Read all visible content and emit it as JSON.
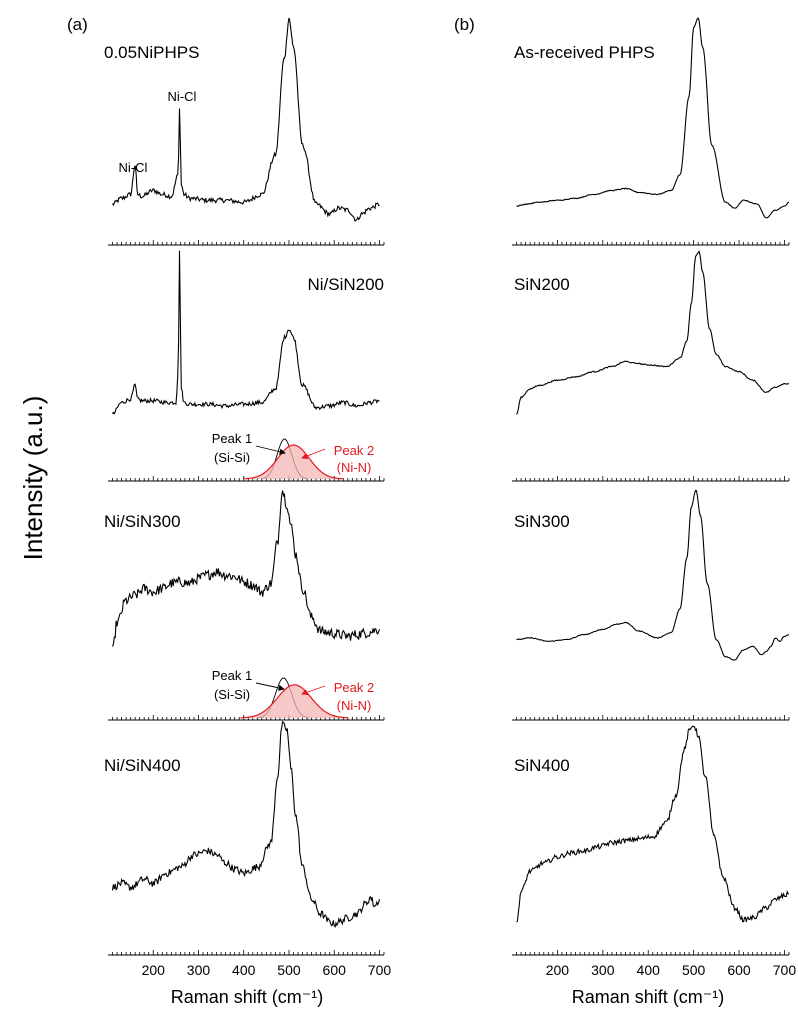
{
  "figure": {
    "y_axis_label": "Intensity (a.u.)",
    "panels": [
      {
        "letter": "(a)",
        "x_axis_label": "Raman shift (cm⁻¹)"
      },
      {
        "letter": "(b)",
        "x_axis_label": "Raman shift (cm⁻¹)"
      }
    ]
  },
  "chart_data": [
    {
      "type": "line",
      "panel": "(a)",
      "xlabel": "Raman shift (cm⁻¹)",
      "ylabel": "Intensity (a.u.)",
      "xlim": [
        100,
        710
      ],
      "xticks": [
        200,
        300,
        400,
        500,
        600,
        700
      ],
      "line_color": "#000000",
      "fit_color": "#e5191e",
      "fit_fill": "#f4b6b6",
      "series": [
        {
          "name": "0.05NiPHPS",
          "x": [
            110,
            130,
            150,
            160,
            165,
            175,
            200,
            220,
            240,
            255,
            258,
            262,
            268,
            280,
            320,
            360,
            400,
            440,
            470,
            490,
            500,
            510,
            530,
            560,
            590,
            610,
            630,
            650,
            660,
            680,
            700
          ],
          "values": [
            0.05,
            0.08,
            0.1,
            0.25,
            0.1,
            0.09,
            0.12,
            0.1,
            0.09,
            0.2,
            0.55,
            0.15,
            0.1,
            0.08,
            0.07,
            0.07,
            0.06,
            0.1,
            0.3,
            0.8,
            1.0,
            0.85,
            0.35,
            0.05,
            0.0,
            0.03,
            0.02,
            -0.03,
            0.0,
            0.03,
            0.05
          ],
          "annotations": [
            {
              "text": "Ni-Cl",
              "x": 160
            },
            {
              "text": "Ni-Cl",
              "x": 258
            }
          ]
        },
        {
          "name": "Ni/SiN200",
          "x": [
            110,
            130,
            150,
            160,
            165,
            175,
            200,
            230,
            250,
            255,
            258,
            262,
            268,
            280,
            320,
            360,
            400,
            440,
            470,
            490,
            500,
            510,
            530,
            560,
            590,
            620,
            650,
            680,
            700
          ],
          "values": [
            0.05,
            0.12,
            0.14,
            0.22,
            0.14,
            0.13,
            0.13,
            0.12,
            0.12,
            0.3,
            1.0,
            0.2,
            0.12,
            0.11,
            0.11,
            0.1,
            0.11,
            0.12,
            0.2,
            0.5,
            0.55,
            0.5,
            0.22,
            0.09,
            0.1,
            0.12,
            0.1,
            0.12,
            0.13
          ]
        },
        {
          "name": "Ni/SiN300",
          "x": [
            110,
            120,
            140,
            160,
            180,
            200,
            220,
            240,
            260,
            280,
            300,
            320,
            340,
            360,
            380,
            400,
            420,
            440,
            460,
            475,
            485,
            495,
            505,
            515,
            530,
            550,
            570,
            590,
            610,
            630,
            650,
            670,
            700
          ],
          "values": [
            0.05,
            0.22,
            0.35,
            0.38,
            0.42,
            0.4,
            0.42,
            0.45,
            0.46,
            0.45,
            0.48,
            0.5,
            0.52,
            0.5,
            0.49,
            0.46,
            0.44,
            0.4,
            0.45,
            0.7,
            1.0,
            0.92,
            0.78,
            0.62,
            0.42,
            0.25,
            0.17,
            0.16,
            0.15,
            0.14,
            0.15,
            0.16,
            0.18
          ]
        },
        {
          "name": "Ni/SiN400",
          "x": [
            110,
            130,
            150,
            180,
            200,
            230,
            260,
            290,
            320,
            340,
            360,
            380,
            400,
            430,
            460,
            475,
            485,
            495,
            505,
            515,
            530,
            550,
            570,
            590,
            600,
            610,
            630,
            650,
            670,
            680,
            690,
            700
          ],
          "values": [
            0.2,
            0.22,
            0.2,
            0.24,
            0.22,
            0.27,
            0.3,
            0.36,
            0.38,
            0.36,
            0.32,
            0.29,
            0.27,
            0.3,
            0.42,
            0.75,
            1.0,
            0.98,
            0.78,
            0.55,
            0.3,
            0.14,
            0.07,
            0.03,
            0.02,
            0.03,
            0.05,
            0.07,
            0.12,
            0.15,
            0.11,
            0.14
          ]
        }
      ],
      "fits": [
        {
          "spectrum": "Ni/SiN200",
          "peaks": [
            {
              "name": "Peak 1",
              "assignment": "(Si-Si)",
              "center": 490,
              "fwhm": 38,
              "height": 1.0
            },
            {
              "name": "Peak 2",
              "assignment": "(Ni-N)",
              "center": 510,
              "fwhm": 82,
              "height": 0.85
            }
          ]
        },
        {
          "spectrum": "Ni/SiN300",
          "peaks": [
            {
              "name": "Peak 1",
              "assignment": "(Si-Si)",
              "center": 488,
              "fwhm": 42,
              "height": 1.0
            },
            {
              "name": "Peak 2",
              "assignment": "(Ni-N)",
              "center": 512,
              "fwhm": 88,
              "height": 0.83
            }
          ]
        }
      ]
    },
    {
      "type": "line",
      "panel": "(b)",
      "xlabel": "Raman shift (cm⁻¹)",
      "ylabel": "Intensity (a.u.)",
      "xlim": [
        100,
        710
      ],
      "xticks": [
        200,
        300,
        400,
        500,
        600,
        700
      ],
      "line_color": "#000000",
      "series": [
        {
          "name": "As-received PHPS",
          "x": [
            110,
            130,
            160,
            200,
            240,
            280,
            320,
            350,
            380,
            420,
            450,
            470,
            490,
            500,
            510,
            520,
            540,
            570,
            590,
            610,
            640,
            660,
            680,
            700,
            710
          ],
          "values": [
            0.04,
            0.05,
            0.06,
            0.07,
            0.08,
            0.1,
            0.12,
            0.13,
            0.11,
            0.1,
            0.12,
            0.2,
            0.6,
            0.95,
            1.0,
            0.85,
            0.35,
            0.06,
            0.03,
            0.07,
            0.05,
            -0.02,
            0.02,
            0.04,
            0.06
          ]
        },
        {
          "name": "SiN200",
          "x": [
            110,
            120,
            140,
            160,
            200,
            240,
            280,
            320,
            350,
            370,
            400,
            440,
            470,
            485,
            495,
            505,
            512,
            520,
            535,
            550,
            570,
            600,
            630,
            660,
            680,
            700,
            710
          ],
          "values": [
            0.05,
            0.15,
            0.2,
            0.22,
            0.25,
            0.27,
            0.3,
            0.33,
            0.36,
            0.35,
            0.34,
            0.33,
            0.38,
            0.48,
            0.7,
            0.98,
            1.0,
            0.88,
            0.55,
            0.4,
            0.33,
            0.3,
            0.25,
            0.18,
            0.21,
            0.23,
            0.23
          ]
        },
        {
          "name": "SiN300",
          "x": [
            110,
            140,
            180,
            220,
            260,
            300,
            330,
            350,
            380,
            420,
            450,
            470,
            485,
            495,
            505,
            515,
            530,
            550,
            570,
            590,
            610,
            630,
            650,
            660,
            670,
            680,
            690,
            700,
            710
          ],
          "values": [
            0.12,
            0.13,
            0.11,
            0.12,
            0.15,
            0.18,
            0.21,
            0.22,
            0.17,
            0.13,
            0.16,
            0.3,
            0.6,
            0.9,
            1.0,
            0.85,
            0.45,
            0.12,
            0.02,
            0.0,
            0.06,
            0.08,
            0.03,
            0.05,
            0.08,
            0.13,
            0.11,
            0.14,
            0.15
          ]
        },
        {
          "name": "SiN400",
          "x": [
            110,
            120,
            140,
            170,
            200,
            230,
            260,
            290,
            320,
            350,
            380,
            410,
            440,
            460,
            480,
            490,
            500,
            510,
            525,
            545,
            565,
            590,
            610,
            630,
            660,
            680,
            700,
            710
          ],
          "values": [
            0.02,
            0.18,
            0.28,
            0.32,
            0.35,
            0.37,
            0.38,
            0.4,
            0.42,
            0.43,
            0.44,
            0.45,
            0.52,
            0.65,
            0.88,
            0.97,
            1.0,
            0.95,
            0.75,
            0.45,
            0.25,
            0.1,
            0.04,
            0.05,
            0.1,
            0.14,
            0.16,
            0.17
          ]
        }
      ]
    }
  ]
}
